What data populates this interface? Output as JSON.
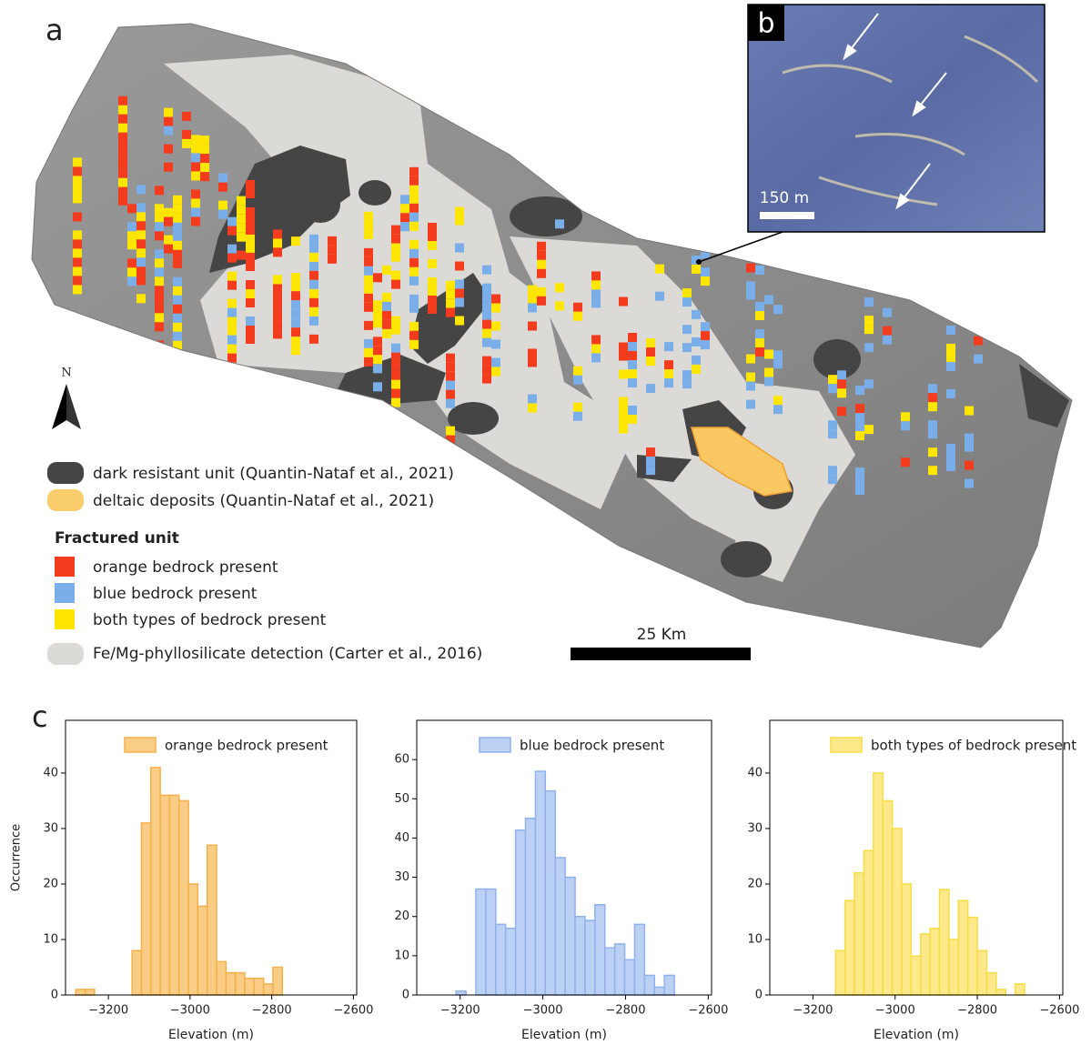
{
  "panel_a": {
    "label": "a",
    "north": "N",
    "scale_bar": "25 Km",
    "inset": {
      "label": "b",
      "scale_bar": "150 m"
    },
    "legend": {
      "units": [
        "dark resistant unit (Quantin-Nataf et al., 2021)",
        "deltaic deposits (Quantin-Nataf et al., 2021)"
      ],
      "fractured_title": "Fractured unit",
      "fractured_items": [
        "orange bedrock present",
        "blue bedrock present",
        "both types of bedrock present"
      ],
      "phyllosilicate": "Fe/Mg-phyllosilicate detection (Carter et al., 2016)"
    }
  },
  "panel_c_label": "c",
  "chart_data": [
    {
      "type": "histogram",
      "x_label": "Elevation (m)",
      "y_label": "Occurrence",
      "bins": [
        -3280,
        -3257,
        -3234,
        -3211,
        -3188,
        -3165,
        -3142,
        -3119,
        -3096,
        -3073,
        -3050,
        -3027,
        -3004,
        -2981,
        -2958,
        -2935,
        -2912,
        -2889,
        -2866,
        -2843,
        -2820,
        -2797,
        -2774
      ],
      "series": [
        {
          "name": "orange bedrock present",
          "color": "#f9cd85",
          "edge_color": "#f5b04a",
          "values": [
            1,
            1,
            0,
            0,
            0,
            0,
            8,
            31,
            41,
            36,
            36,
            35,
            20,
            16,
            27,
            6,
            4,
            4,
            3,
            3,
            2,
            5
          ]
        }
      ],
      "xlim": [
        -3305,
        -2592
      ],
      "ylim": [
        0,
        49.5
      ],
      "xticks": [
        {
          "value": -3200,
          "label": "−3200"
        },
        {
          "value": -3000,
          "label": "−3000"
        },
        {
          "value": -2800,
          "label": "−2800"
        },
        {
          "value": -2600,
          "label": "−2600"
        }
      ],
      "yticks": [
        0,
        10,
        20,
        30,
        40
      ],
      "legend": "upper right"
    },
    {
      "type": "histogram",
      "x_label": "Elevation (m)",
      "bins": [
        -3210,
        -3186,
        -3162,
        -3138,
        -3114,
        -3090,
        -3066,
        -3042,
        -3018,
        -2994,
        -2970,
        -2946,
        -2922,
        -2898,
        -2874,
        -2850,
        -2826,
        -2802,
        -2778,
        -2754,
        -2730,
        -2706,
        -2682
      ],
      "series": [
        {
          "name": "blue bedrock present",
          "color": "#bcd0f4",
          "edge_color": "#8fb1ec",
          "values": [
            1,
            0,
            27,
            27,
            18,
            17,
            42,
            45,
            57,
            52,
            35,
            30,
            20,
            19,
            23,
            12,
            13,
            9,
            18,
            5,
            2,
            5
          ]
        }
      ],
      "xlim": [
        -3305,
        -2592
      ],
      "ylim": [
        0,
        70
      ],
      "xticks": [
        {
          "value": -3200,
          "label": "−3200"
        },
        {
          "value": -3000,
          "label": "−3000"
        },
        {
          "value": -2800,
          "label": "−2800"
        },
        {
          "value": -2600,
          "label": "−2600"
        }
      ],
      "yticks": [
        0,
        10,
        20,
        30,
        40,
        50,
        60
      ],
      "legend": "upper right"
    },
    {
      "type": "histogram",
      "x_label": "Elevation (m)",
      "bins": [
        -3145,
        -3122,
        -3099,
        -3076,
        -3053,
        -3030,
        -3007,
        -2984,
        -2961,
        -2938,
        -2915,
        -2892,
        -2869,
        -2846,
        -2823,
        -2800,
        -2777,
        -2754,
        -2731,
        -2708,
        -2685
      ],
      "series": [
        {
          "name": "both types of bedrock present",
          "color": "#fde98a",
          "edge_color": "#f7dc45",
          "values": [
            8,
            17,
            22,
            26,
            40,
            35,
            30,
            20,
            7,
            11,
            12,
            19,
            10,
            17,
            14,
            8,
            4,
            1,
            0,
            2
          ]
        }
      ],
      "xlim": [
        -3305,
        -2592
      ],
      "ylim": [
        0,
        49.5
      ],
      "xticks": [
        {
          "value": -3200,
          "label": "−3200"
        },
        {
          "value": -3000,
          "label": "−3000"
        },
        {
          "value": -2800,
          "label": "−2800"
        },
        {
          "value": -2600,
          "label": "−2600"
        }
      ],
      "yticks": [
        0,
        10,
        20,
        30,
        40
      ],
      "legend": "upper right"
    }
  ]
}
